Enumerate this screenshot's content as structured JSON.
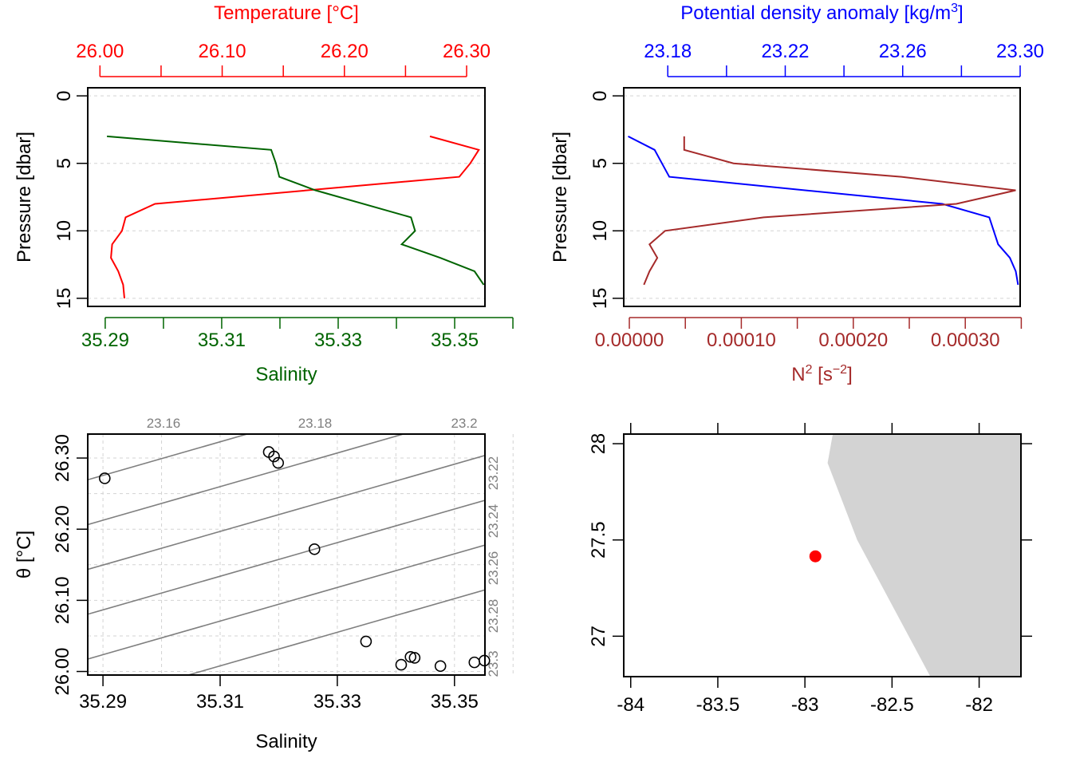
{
  "chart_data": [
    {
      "type": "line",
      "panel": "temperature-salinity-profile",
      "top_axis": {
        "label": "Temperature [°C]",
        "color": "#ff0000",
        "range": [
          25.99,
          26.315
        ],
        "ticks": [
          "26.00",
          "26.10",
          "26.20",
          "26.30"
        ]
      },
      "bottom_axis": {
        "label": "Salinity",
        "color": "#006400",
        "range": [
          35.287,
          35.3552
        ],
        "ticks": [
          "35.29",
          "35.31",
          "35.33",
          "35.35"
        ]
      },
      "left_axis": {
        "label": "Pressure [dbar]",
        "range": [
          15.6,
          -0.6
        ],
        "ticks": [
          "0",
          "5",
          "10",
          "15"
        ]
      },
      "grid": true,
      "series": [
        {
          "name": "Temperature",
          "color": "#ff0000",
          "axis": "top",
          "points": [
            [
              26.27,
              3
            ],
            [
              26.31,
              4
            ],
            [
              26.303,
              5
            ],
            [
              26.294,
              6
            ],
            [
              26.045,
              8
            ],
            [
              26.021,
              9
            ],
            [
              26.018,
              10
            ],
            [
              26.01,
              11
            ],
            [
              26.009,
              12
            ],
            [
              26.015,
              13
            ],
            [
              26.019,
              14
            ],
            [
              26.02,
              15
            ]
          ]
        },
        {
          "name": "Salinity",
          "color": "#006400",
          "axis": "bottom",
          "points": [
            [
              35.2903,
              3
            ],
            [
              35.3185,
              4
            ],
            [
              35.3193,
              5
            ],
            [
              35.3199,
              6
            ],
            [
              35.3261,
              7
            ],
            [
              35.3425,
              9
            ],
            [
              35.3432,
              10
            ],
            [
              35.3409,
              11
            ],
            [
              35.3475,
              12
            ],
            [
              35.3534,
              13
            ],
            [
              35.355,
              14
            ]
          ]
        }
      ]
    },
    {
      "type": "line",
      "panel": "density-n2-profile",
      "top_axis": {
        "label": "Potential density anomaly [kg/m",
        "label_sup": "3",
        "label_end": "]",
        "color": "#0000ff",
        "range": [
          23.165,
          23.3
        ],
        "ticks": [
          "23.18",
          "23.22",
          "23.26",
          "23.30"
        ]
      },
      "bottom_axis": {
        "label": "N",
        "label_sup": "2",
        "label_mid": " [s",
        "label_sup2": "−2",
        "label_end": "]",
        "color": "#a52a2a",
        "range": [
          -5e-06,
          0.000349
        ],
        "ticks": [
          "0.00000",
          "0.00010",
          "0.00020",
          "0.00030"
        ]
      },
      "left_axis": {
        "label": "Pressure [dbar]",
        "range": [
          15.6,
          -0.6
        ],
        "ticks": [
          "0",
          "5",
          "10",
          "15"
        ]
      },
      "grid": true,
      "series": [
        {
          "name": "Potential density anomaly",
          "color": "#0000ff",
          "axis": "top",
          "points": [
            [
              23.1665,
              3
            ],
            [
              23.1755,
              4
            ],
            [
              23.178,
              5
            ],
            [
              23.1805,
              6
            ],
            [
              23.2735,
              8
            ],
            [
              23.2895,
              9
            ],
            [
              23.2925,
              11
            ],
            [
              23.2965,
              12
            ],
            [
              23.2985,
              13
            ],
            [
              23.2993,
              14
            ]
          ]
        },
        {
          "name": "N2",
          "color": "#a52a2a",
          "axis": "bottom",
          "points": [
            [
              4.9e-05,
              3
            ],
            [
              4.9e-05,
              4
            ],
            [
              9.3e-05,
              5
            ],
            [
              0.000243,
              6
            ],
            [
              0.000345,
              7
            ],
            [
              0.000292,
              8
            ],
            [
              0.00012,
              9
            ],
            [
              3.2e-05,
              10
            ],
            [
              1.8e-05,
              11
            ],
            [
              2.5e-05,
              12
            ],
            [
              1.8e-05,
              13
            ],
            [
              1.3e-05,
              14
            ]
          ]
        }
      ]
    },
    {
      "type": "scatter",
      "panel": "ts-diagram",
      "xlabel": "Salinity",
      "ylabel": "θ [°C]",
      "xlim": [
        35.2874,
        35.3552
      ],
      "ylim": [
        25.995,
        26.3337
      ],
      "x_ticks": [
        "35.29",
        "35.31",
        "35.33",
        "35.35"
      ],
      "y_ticks": [
        "26.00",
        "26.10",
        "26.20",
        "26.30"
      ],
      "isopycnal_labels_top": [
        "23.16",
        "23.18",
        "23.2"
      ],
      "isopycnal_labels_right": [
        "23.22",
        "23.24",
        "23.26",
        "23.28",
        "23.3"
      ],
      "grid": true,
      "points": [
        [
          35.2903,
          26.2715
        ],
        [
          35.3183,
          26.3085
        ],
        [
          35.3192,
          26.3022
        ],
        [
          35.3199,
          26.2932
        ],
        [
          35.3261,
          26.1719
        ],
        [
          35.3349,
          26.0422
        ],
        [
          35.3409,
          26.0095
        ],
        [
          35.3425,
          26.0205
        ],
        [
          35.3432,
          26.0192
        ],
        [
          35.3476,
          26.0076
        ],
        [
          35.3534,
          26.0128
        ],
        [
          35.3551,
          26.0153
        ]
      ]
    },
    {
      "type": "map",
      "panel": "station-map",
      "xlim": [
        -84.04,
        -81.76
      ],
      "ylim": [
        26.79,
        28.05
      ],
      "x_ticks": [
        "-84",
        "-83.5",
        "-83",
        "-82.5",
        "-82"
      ],
      "y_ticks": [
        "27",
        "27.5",
        "28"
      ],
      "land_color": "#d3d3d3",
      "station": {
        "lon": -82.94,
        "lat": 27.415,
        "color": "#ff0000"
      }
    }
  ]
}
